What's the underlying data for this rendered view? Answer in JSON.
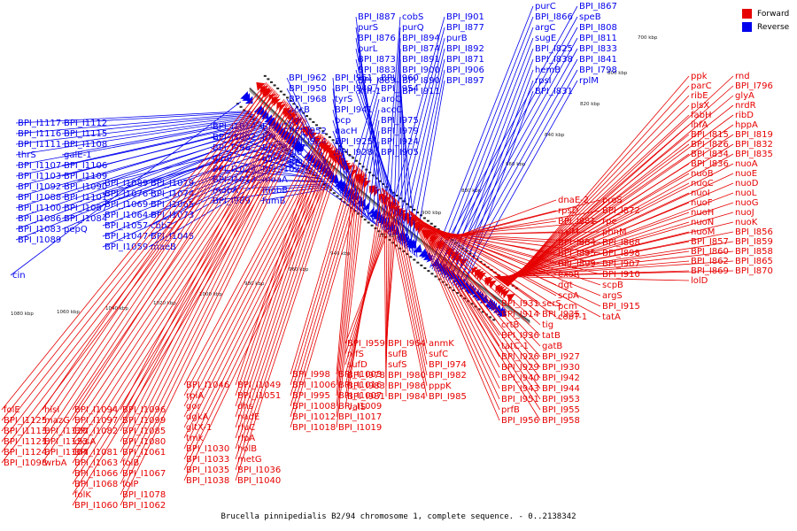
{
  "legend": {
    "forward_label": "Forward",
    "reverse_label": "Reverse",
    "forward_color": "#e60000",
    "reverse_color": "#0000ee"
  },
  "caption": "Brucella pinnipedialis B2/94 chromosome 1, complete sequence. - 0..2138342",
  "ticks": [
    "700 kbp",
    "800 kbp",
    "820 kbp",
    "840 kbp",
    "860 kbp",
    "880 kbp",
    "900 kbp",
    "920 kbp",
    "940 kbp",
    "960 kbp",
    "980 kbp",
    "1000 kbp",
    "1020 kbp",
    "1040 kbp",
    "1060 kbp",
    "1080 kbp"
  ],
  "reverse_labels": [
    "cin",
    "BPI_I1117",
    "BPI_I1112",
    "BPI_I1116",
    "BPI_I1115",
    "BPI_I1111",
    "BPI_I1108",
    "thrS",
    "galE-1",
    "BPI_I1107",
    "BPI_I1106",
    "BPI_I1103",
    "BPI_I1109",
    "BPI_I1092",
    "BPI_I1090",
    "BPI_I1088",
    "BPI_I1101",
    "BPI_I1100",
    "BPI_I1087",
    "BPI_I1086",
    "BPI_I1084",
    "BPI_I1083",
    "pepQ",
    "BPI_I1089",
    "BPI_I1079",
    "BPI_I1076",
    "BPI_I1074",
    "BPI_I1069",
    "BPI_I1065",
    "BPI_I1064",
    "BPI_I1073",
    "BPI_I1057",
    "cbbZ",
    "BPI_I1047",
    "BPI_I1045",
    "BPI_I1059",
    "maeB",
    "BPI_I1014",
    "BPI_I1011",
    "BPI_I1002",
    "BPI_I1000",
    "BPI_I996",
    "BPI_I1037",
    "glnB",
    "glnA",
    "BPI_I1024",
    "BPI_I1022",
    "BPI_I1013",
    "moaA",
    "mobA",
    "mobB",
    "BPI_I989",
    "fumB",
    "BPI_I962",
    "BPI_I961",
    "BPI_I960",
    "BPI_I950",
    "BPI_I949",
    "BPI_I954",
    "BPI_I968",
    "tyrS",
    "aroQ",
    "accB",
    "BPI_I941",
    "accC",
    "aat",
    "bcp",
    "BPI_I975",
    "BPI_I952",
    "qacH",
    "BPI_I979",
    "BPI_I934",
    "BPI_I925",
    "BPI_I924",
    "gid",
    "BPI_I928",
    "BPI_I905",
    "BPI_I904",
    "BPI_I887",
    "cobS",
    "BPI_I901",
    "purS",
    "purQ",
    "BPI_I877",
    "BPI_I876",
    "BPI_I894",
    "purB",
    "purL",
    "BPI_I874",
    "BPI_I892",
    "BPI_I873",
    "BPI_I891",
    "BPI_I871",
    "BPI_I883",
    "BPI_I900",
    "BPI_I906",
    "BPI_I889",
    "BPI_I890",
    "BPI_I897",
    "xth-1",
    "BPI_I911",
    "purC",
    "BPI_I867",
    "BPI_I866",
    "speB",
    "argC",
    "BPI_I808",
    "sugE",
    "BPI_I811",
    "BPI_I825",
    "BPI_I833",
    "BPI_I838",
    "BPI_I841",
    "hemB",
    "BPI_I798",
    "rpsI",
    "rplM",
    "BPI_I831"
  ],
  "forward_top_labels": [
    "ppk",
    "rnd",
    "parC",
    "BPI_I796",
    "ribE",
    "glyA",
    "plsX",
    "nrdR",
    "fabH",
    "ribD",
    "ihfA",
    "hppA",
    "BPI_I815",
    "BPI_I819",
    "BPI_I826",
    "BPI_I832",
    "BPI_I834",
    "BPI_I835",
    "BPI_I836",
    "nuoA",
    "nuoB",
    "nuoE",
    "nuoC",
    "nuoD",
    "nuoI",
    "nuoL",
    "nuoF",
    "nuoG",
    "nuoH",
    "nuoJ",
    "nuoN",
    "nuoK",
    "nuoM",
    "BPI_I856",
    "BPI_I857",
    "BPI_I859",
    "BPI_I860",
    "BPI_I858",
    "BPI_I862",
    "BPI_I865",
    "BPI_I869",
    "BPI_I870",
    "lolD",
    "dnaE-2",
    "proS",
    "rpsD",
    "BPI_I872",
    "BPI_I881",
    "rpe",
    "galM",
    "phnM",
    "BPI_I884",
    "BPI_I888",
    "BPI_I895",
    "BPI_I898",
    "BPI_I899",
    "BPI_I907",
    "exoR",
    "BPI_I910",
    "dgt",
    "scpB",
    "scpA",
    "argS",
    "pcm",
    "BPI_I915",
    "cobT-1",
    "tatA",
    "BPI_I931",
    "serS",
    "BPI_I914",
    "BPI_I935",
    "crtB",
    "tig",
    "BPI_I936",
    "tatB",
    "tatC-1",
    "gatB",
    "BPI_I926",
    "BPI_I927",
    "BPI_I929",
    "BPI_I930",
    "BPI_I940",
    "BPI_I942",
    "BPI_I943",
    "BPI_I944",
    "BPI_I951",
    "BPI_I953",
    "prfB",
    "BPI_I955",
    "BPI_I956",
    "BPI_I958",
    "BPI_I959",
    "BPI_I964",
    "anmK",
    "nifS",
    "sufB",
    "sufC",
    "sufD",
    "sufS",
    "BPI_I974",
    "BPI_I978",
    "BPI_I980",
    "BPI_I982",
    "BPI_I983",
    "BPI_I986",
    "pppK",
    "BPI_I981",
    "BPI_I984",
    "BPI_I985",
    "valS"
  ],
  "forward_bottom_labels": [
    "folE",
    "hisI",
    "BPI_I1125",
    "mazG",
    "BPI_I1113",
    "BPI_I1120",
    "BPI_I1121",
    "BPI_I1123",
    "BPI_I1124",
    "BPI_I1104",
    "BPI_I1098",
    "wrbA",
    "BPI_I1094",
    "BPI_I1096",
    "BPI_I1097",
    "BPI_I1099",
    "BPI_I1082",
    "BPI_I1085",
    "dksA",
    "BPI_I1080",
    "BPI_I1081",
    "BPI_I1061",
    "BPI_I1063",
    "folB",
    "BPI_I1066",
    "BPI_I1067",
    "BPI_I1068",
    "folP",
    "folK",
    "BPI_I1078",
    "BPI_I1060",
    "BPI_I1062",
    "BPI_I1046",
    "BPI_I1049",
    "rpiA",
    "BPI_I1051",
    "gor",
    "dhs",
    "dgkA",
    "nadE",
    "gltX-1",
    "rluC",
    "tmk",
    "rlpA",
    "BPI_I1030",
    "holB",
    "BPI_I1033",
    "metG",
    "BPI_I1035",
    "BPI_I1036",
    "BPI_I1038",
    "BPI_I1040",
    "BPI_I998",
    "BPI_I1003",
    "BPI_I1006",
    "BPI_I1016",
    "BPI_I995",
    "BPI_I1007",
    "BPI_I1008",
    "BPI_I1009",
    "BPI_I1012",
    "BPI_I1017",
    "BPI_I1018",
    "BPI_I1019"
  ]
}
